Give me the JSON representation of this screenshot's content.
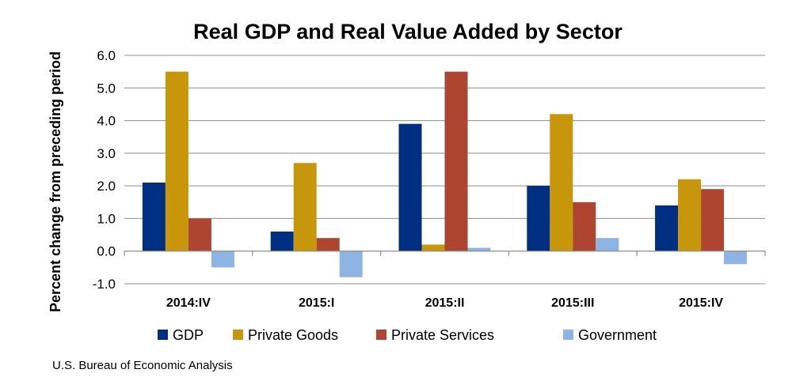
{
  "chart_data": {
    "type": "bar",
    "title": "Real GDP and Real Value Added by Sector",
    "xlabel": "",
    "ylabel": "Percent change from preceding period",
    "ylim": [
      -1.0,
      6.0
    ],
    "y_ticks": [
      "6.0",
      "5.0",
      "4.0",
      "3.0",
      "2.0",
      "1.0",
      "0.0",
      "-1.0"
    ],
    "categories": [
      "2014:IV",
      "2015:I",
      "2015:II",
      "2015:III",
      "2015:IV"
    ],
    "series": [
      {
        "name": "GDP",
        "color": "#002E80",
        "values": [
          2.1,
          0.6,
          3.9,
          2.0,
          1.4
        ]
      },
      {
        "name": "Private Goods",
        "color": "#C8960A",
        "values": [
          5.5,
          2.7,
          0.2,
          4.2,
          2.2
        ]
      },
      {
        "name": "Private Services",
        "color": "#AE4530",
        "values": [
          1.0,
          0.4,
          5.5,
          1.5,
          1.9
        ]
      },
      {
        "name": "Government",
        "color": "#8EB4E3",
        "values": [
          -0.5,
          -0.8,
          0.1,
          0.4,
          -0.4
        ]
      }
    ],
    "grid": true,
    "legend": "bottom",
    "source": "U.S. Bureau of Economic Analysis"
  }
}
